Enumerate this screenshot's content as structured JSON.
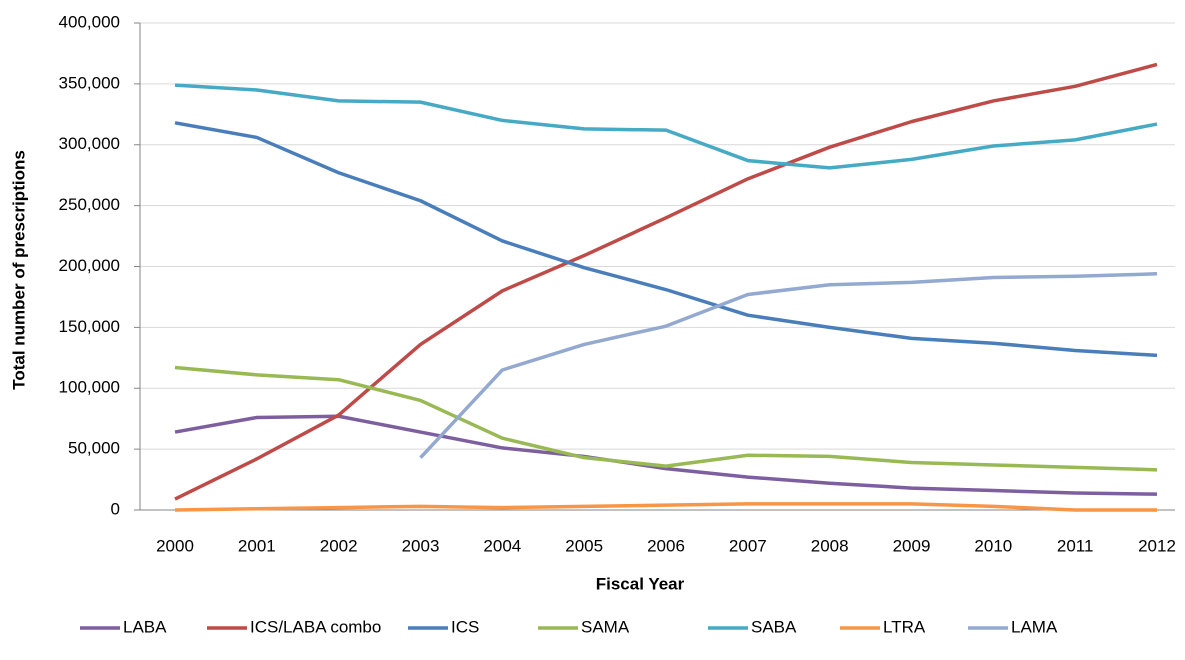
{
  "chart_data": {
    "type": "line",
    "x_label": "Fiscal Year",
    "y_label": "Total number of prescriptions",
    "categories": [
      "2000",
      "2001",
      "2002",
      "2003",
      "2004",
      "2005",
      "2006",
      "2007",
      "2008",
      "2009",
      "2010",
      "2011",
      "2012"
    ],
    "ylim": [
      0,
      400000
    ],
    "yticks": [
      0,
      {
        "value": 50000,
        "label": "50,000"
      },
      {
        "value": 100000,
        "label": "100,000"
      },
      {
        "value": 150000,
        "label": "150,000"
      },
      {
        "value": 200000,
        "label": "200,000"
      },
      {
        "value": 250000,
        "label": "250,000"
      },
      {
        "value": 300000,
        "label": "300,000"
      },
      {
        "value": 350000,
        "label": "350,000"
      },
      {
        "value": 400000,
        "label": "400,000"
      }
    ],
    "grid": true,
    "legend": "bottom",
    "series": [
      {
        "name": "LABA",
        "color": "#7d5fa0",
        "values": [
          64000,
          76000,
          77000,
          64000,
          51000,
          44000,
          34000,
          27000,
          22000,
          18000,
          16000,
          14000,
          13000
        ]
      },
      {
        "name": "ICS/LABA combo",
        "color": "#be4b48",
        "values": [
          9000,
          42000,
          78000,
          136000,
          180000,
          209000,
          240000,
          272000,
          298000,
          319000,
          336000,
          348000,
          366000
        ]
      },
      {
        "name": "ICS",
        "color": "#4a7ebb",
        "values": [
          318000,
          306000,
          277000,
          254000,
          221000,
          199000,
          181000,
          160000,
          150000,
          141000,
          137000,
          131000,
          127000
        ]
      },
      {
        "name": "SAMA",
        "color": "#98b954",
        "values": [
          117000,
          111000,
          107000,
          90000,
          59000,
          43000,
          36000,
          45000,
          44000,
          39000,
          37000,
          35000,
          33000
        ]
      },
      {
        "name": "SABA",
        "color": "#46aac5",
        "values": [
          349000,
          345000,
          336000,
          335000,
          320000,
          313000,
          312000,
          287000,
          281000,
          288000,
          299000,
          304000,
          317000
        ]
      },
      {
        "name": "LTRA",
        "color": "#f79646",
        "values": [
          0,
          1000,
          2000,
          3000,
          2000,
          3000,
          4000,
          5000,
          5000,
          5000,
          3000,
          0,
          0
        ]
      },
      {
        "name": "LAMA",
        "color": "#93a9cf",
        "values": [
          null,
          null,
          null,
          43000,
          115000,
          136000,
          151000,
          177000,
          185000,
          187000,
          191000,
          192000,
          194000
        ]
      }
    ]
  }
}
